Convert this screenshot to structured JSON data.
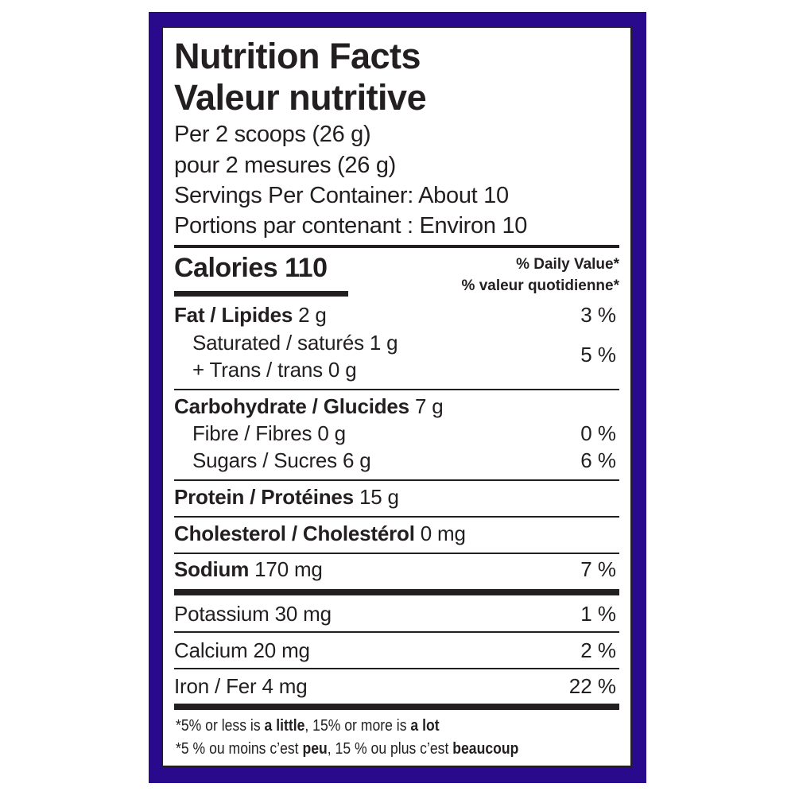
{
  "colors": {
    "border": "#2a0a8c",
    "text": "#231f20"
  },
  "header": {
    "title_en": "Nutrition Facts",
    "title_fr": "Valeur nutritive",
    "serving_en": "Per 2 scoops (26 g)",
    "serving_fr": "pour 2 mesures (26 g)",
    "servings_en": "Servings Per Container: About 10",
    "servings_fr": "Portions par contenant : Environ 10"
  },
  "calories": {
    "label": "Calories 110",
    "dv_en": "% Daily Value*",
    "dv_fr": "% valeur quotidienne*"
  },
  "nutrients": [
    {
      "label": "Fat / Lipides",
      "amount": "2 g",
      "dv": "3 %"
    },
    {
      "label": "Saturated / saturés 1 g",
      "label2": "+ Trans / trans 0 g",
      "dv": "5 %"
    },
    {
      "label": "Carbohydrate / Glucides",
      "amount": "7 g"
    },
    {
      "label": "Fibre / Fibres 0 g",
      "dv": "0 %"
    },
    {
      "label": "Sugars / Sucres 6 g",
      "dv": "6 %"
    },
    {
      "label": "Protein / Protéines",
      "amount": "15 g"
    },
    {
      "label": "Cholesterol / Cholestérol",
      "amount": "0 mg"
    },
    {
      "label": "Sodium",
      "amount": "170 mg",
      "dv": "7 %"
    },
    {
      "label": "Potassium 30 mg",
      "dv": "1 %"
    },
    {
      "label": "Calcium 20 mg",
      "dv": "2 %"
    },
    {
      "label": "Iron / Fer 4 mg",
      "dv": "22 %"
    }
  ],
  "footnote": {
    "en": {
      "a": "*5% or less is ",
      "b": "a little",
      "c": ", 15% or more is ",
      "d": "a lot"
    },
    "fr": {
      "a": "*5 % ou moins c’est ",
      "b": "peu",
      "c": ", 15 % ou plus c’est ",
      "d": "beaucoup"
    }
  }
}
